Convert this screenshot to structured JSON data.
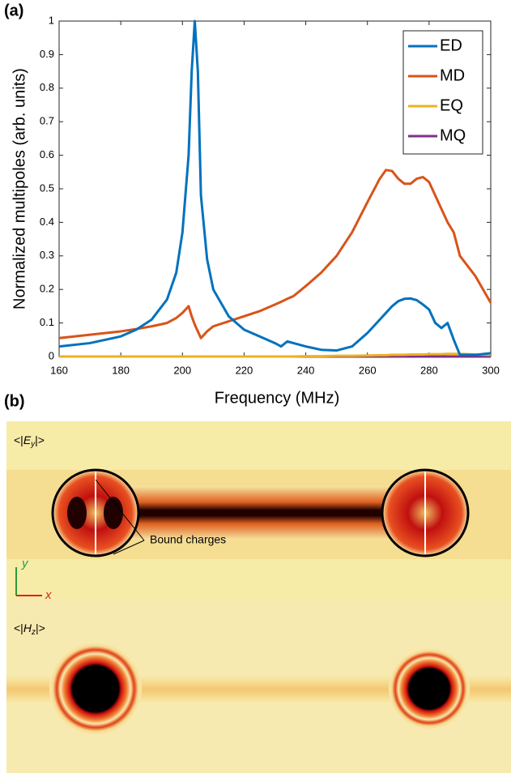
{
  "chart_data": {
    "type": "line",
    "panel_label": "(a)",
    "x_label": "Frequency (MHz)",
    "y_label": "Normalized multipoles (arb. units)",
    "x": [
      160,
      170,
      180,
      185,
      190,
      195,
      198,
      200,
      202,
      203,
      204,
      205,
      206,
      208,
      210,
      215,
      220,
      225,
      230,
      232,
      234,
      236,
      240,
      245,
      250,
      255,
      260,
      264,
      266,
      268,
      270,
      272,
      274,
      276,
      278,
      280,
      282,
      284,
      286,
      288,
      290,
      295,
      300
    ],
    "series": [
      {
        "name": "ED",
        "color": "#0072bd",
        "values": [
          0.03,
          0.04,
          0.06,
          0.08,
          0.11,
          0.17,
          0.25,
          0.37,
          0.6,
          0.85,
          1.0,
          0.85,
          0.48,
          0.29,
          0.2,
          0.12,
          0.08,
          0.06,
          0.04,
          0.03,
          0.045,
          0.04,
          0.03,
          0.02,
          0.018,
          0.03,
          0.07,
          0.11,
          0.13,
          0.15,
          0.165,
          0.172,
          0.173,
          0.168,
          0.155,
          0.14,
          0.1,
          0.085,
          0.1,
          0.05,
          0.005,
          0.005,
          0.01
        ]
      },
      {
        "name": "MD",
        "color": "#d95319",
        "values": [
          0.055,
          0.065,
          0.075,
          0.082,
          0.09,
          0.1,
          0.115,
          0.13,
          0.15,
          0.12,
          0.095,
          0.075,
          0.055,
          0.075,
          0.09,
          0.105,
          0.12,
          0.135,
          0.155,
          0.163,
          0.172,
          0.18,
          0.21,
          0.25,
          0.3,
          0.37,
          0.46,
          0.53,
          0.556,
          0.553,
          0.53,
          0.515,
          0.515,
          0.53,
          0.535,
          0.52,
          0.48,
          0.44,
          0.4,
          0.37,
          0.3,
          0.24,
          0.16
        ]
      },
      {
        "name": "EQ",
        "color": "#edb120",
        "values": [
          0,
          0,
          0,
          0,
          0,
          0,
          0,
          0,
          0,
          0,
          0,
          0,
          0,
          0,
          0,
          0,
          0,
          0,
          0,
          0,
          0,
          0,
          0.001,
          0.001,
          0.002,
          0.002,
          0.003,
          0.004,
          0.004,
          0.005,
          0.005,
          0.005,
          0.006,
          0.006,
          0.006,
          0.007,
          0.007,
          0.007,
          0.008,
          0.008,
          0.008,
          0.006,
          0.005
        ]
      },
      {
        "name": "MQ",
        "color": "#7e2f8e",
        "values": [
          0,
          0,
          0,
          0,
          0,
          0,
          0,
          0,
          0,
          0,
          0,
          0,
          0,
          0,
          0,
          0,
          0,
          0,
          0,
          0,
          0,
          0,
          0,
          0,
          0,
          0,
          0,
          0,
          0,
          0,
          0,
          0,
          0,
          0,
          0,
          0,
          0,
          0,
          0,
          0,
          0,
          0,
          0
        ]
      }
    ],
    "xlim": [
      160,
      300
    ],
    "xticks": [
      160,
      180,
      200,
      220,
      240,
      260,
      280,
      300
    ],
    "ylim": [
      0,
      1
    ],
    "yticks": [
      0,
      0.1,
      0.2,
      0.3,
      0.4,
      0.5,
      0.6,
      0.7,
      0.8,
      0.9,
      1
    ],
    "legend": "top-right"
  },
  "field_maps": {
    "panel_label": "(b)",
    "top_label": [
      "<|",
      "E",
      "y",
      "|>"
    ],
    "bottom_label": [
      "<|",
      "H",
      "z",
      "|>"
    ],
    "annotation": "Bound charges",
    "axis_y": "y",
    "axis_x": "x"
  }
}
